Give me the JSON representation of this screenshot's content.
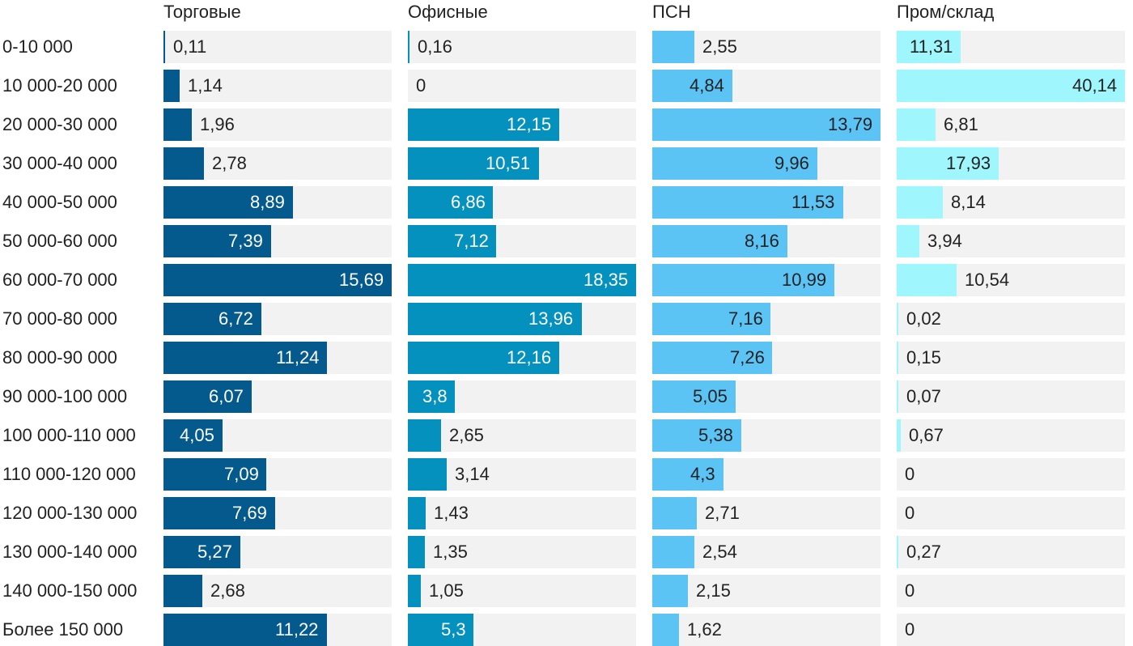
{
  "chart_data": {
    "type": "bar",
    "orientation": "horizontal",
    "layout": "small-multiples",
    "categories": [
      "0-10 000",
      "10 000-20 000",
      "20 000-30 000",
      "30 000-40 000",
      "40 000-50 000",
      "50 000-60 000",
      "60 000-70 000",
      "70 000-80 000",
      "80 000-90 000",
      "90 000-100 000",
      "100 000-110 000",
      "110 000-120 000",
      "120 000-130 000",
      "130 000-140 000",
      "140 000-150 000",
      "Более 150 000"
    ],
    "series": [
      {
        "name": "Торговые",
        "color": "#045a8d",
        "label_color_inside": "#ffffff",
        "values": [
          0.11,
          1.14,
          1.96,
          2.78,
          8.89,
          7.39,
          15.69,
          6.72,
          11.24,
          6.07,
          4.05,
          7.09,
          7.69,
          5.27,
          2.68,
          11.22
        ],
        "labels": [
          "0,11",
          "1,14",
          "1,96",
          "2,78",
          "8,89",
          "7,39",
          "15,69",
          "6,72",
          "11,24",
          "6,07",
          "4,05",
          "7,09",
          "7,69",
          "5,27",
          "2,68",
          "11,22"
        ],
        "xlim": [
          0,
          15.69
        ]
      },
      {
        "name": "Офисные",
        "color": "#0591be",
        "label_color_inside": "#ffffff",
        "values": [
          0.16,
          0,
          12.15,
          10.51,
          6.86,
          7.12,
          18.35,
          13.96,
          12.16,
          3.8,
          2.65,
          3.14,
          1.43,
          1.35,
          1.05,
          5.3
        ],
        "labels": [
          "0,16",
          "0",
          "12,15",
          "10,51",
          "6,86",
          "7,12",
          "18,35",
          "13,96",
          "12,16",
          "3,8",
          "2,65",
          "3,14",
          "1,43",
          "1,35",
          "1,05",
          "5,3"
        ],
        "xlim": [
          0,
          18.35
        ]
      },
      {
        "name": "ПСН",
        "color": "#5bc4f5",
        "label_color_inside": "#222222",
        "values": [
          2.55,
          4.84,
          13.79,
          9.96,
          11.53,
          8.16,
          10.99,
          7.16,
          7.26,
          5.05,
          5.38,
          4.3,
          2.71,
          2.54,
          2.15,
          1.62
        ],
        "labels": [
          "2,55",
          "4,84",
          "13,79",
          "9,96",
          "11,53",
          "8,16",
          "10,99",
          "7,16",
          "7,26",
          "5,05",
          "5,38",
          "4,3",
          "2,71",
          "2,54",
          "2,15",
          "1,62"
        ],
        "xlim": [
          0,
          13.79
        ]
      },
      {
        "name": "Пром/склад",
        "color": "#9ff7fd",
        "label_color_inside": "#222222",
        "values": [
          11.31,
          40.14,
          6.81,
          17.93,
          8.14,
          3.94,
          10.54,
          0.02,
          0.15,
          0.07,
          0.67,
          0,
          0,
          0.27,
          0,
          0
        ],
        "labels": [
          "11,31",
          "40,14",
          "6,81",
          "17,93",
          "8,14",
          "3,94",
          "10,54",
          "0,02",
          "0,15",
          "0,07",
          "0,67",
          "0",
          "0",
          "0,27",
          "0",
          "0"
        ],
        "xlim": [
          0,
          40.14
        ]
      }
    ],
    "background_track_color": "#f2f2f2",
    "grid": false,
    "legend": "none"
  }
}
